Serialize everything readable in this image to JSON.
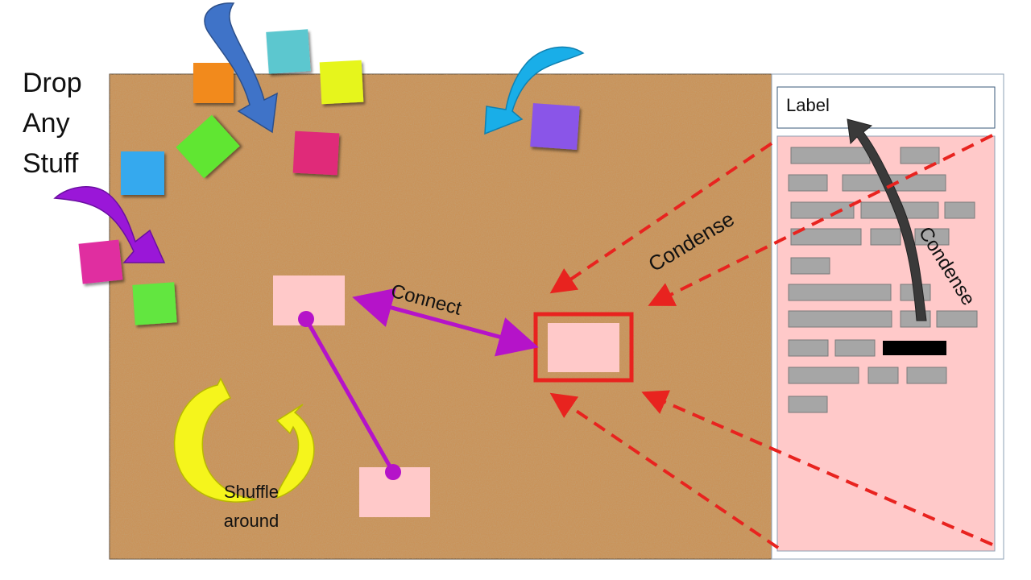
{
  "side_title": [
    "Drop",
    "Any",
    "Stuff"
  ],
  "panel": {
    "label_text": "Label"
  },
  "annotations": {
    "connect": "Connect",
    "condense_left": "Condense",
    "condense_right": "Condense",
    "shuffle_line1": "Shuffle",
    "shuffle_line2": "around"
  },
  "colors": {
    "cork": "#c9935a",
    "panel_fill": "#ffc9c9",
    "note_pink": "#ffc9c9",
    "connector": "#b513c9",
    "focus_red": "#e8231f",
    "redacted_bar": "#000000",
    "text_bar": "#a6a6a6"
  },
  "sticky_notes": [
    {
      "color": "#f28a1c",
      "name": "orange"
    },
    {
      "color": "#5cc7cf",
      "name": "teal"
    },
    {
      "color": "#e6f51f",
      "name": "yellow"
    },
    {
      "color": "#60e632",
      "name": "green"
    },
    {
      "color": "#e02a79",
      "name": "magenta"
    },
    {
      "color": "#36a9ee",
      "name": "blue"
    },
    {
      "color": "#8a55e8",
      "name": "purple"
    },
    {
      "color": "#e02ea0",
      "name": "pink"
    },
    {
      "color": "#62e640",
      "name": "light-green"
    }
  ],
  "drop_arrows": [
    {
      "color": "#3f73c8",
      "name": "blue"
    },
    {
      "color": "#19aee8",
      "name": "light-blue"
    },
    {
      "color": "#9a17d8",
      "name": "purple"
    }
  ]
}
